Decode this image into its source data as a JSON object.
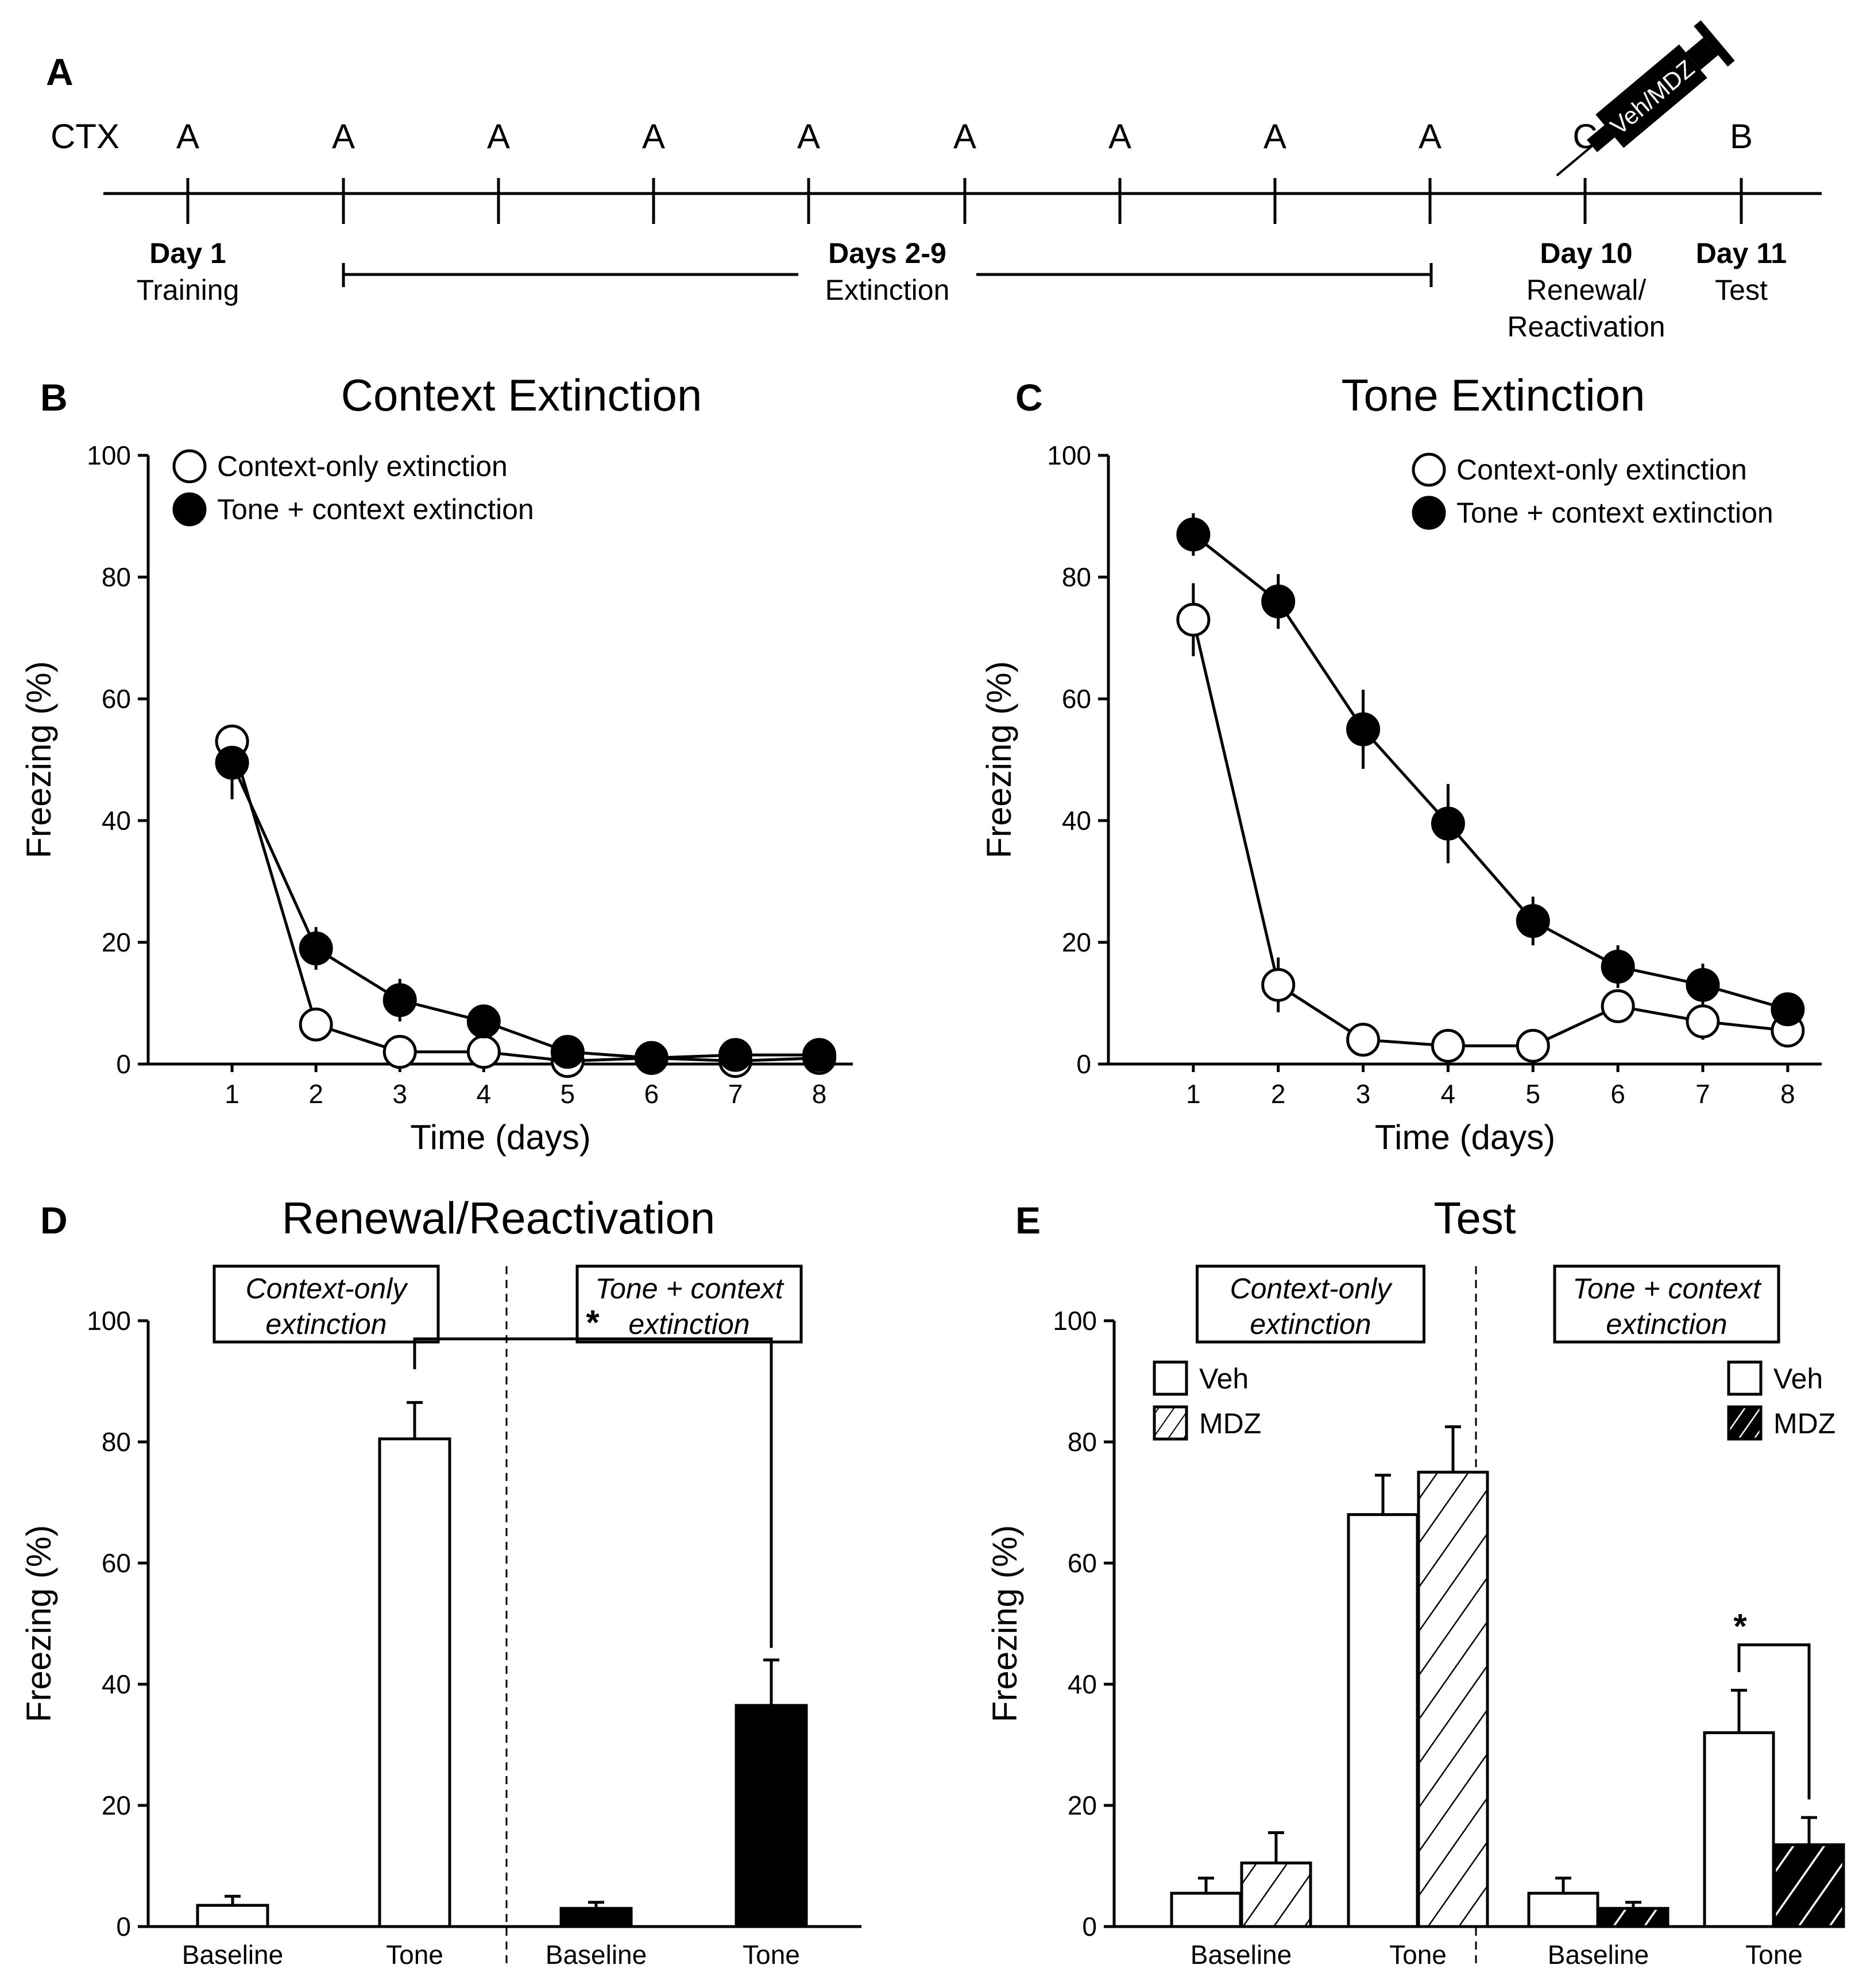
{
  "panel_a": {
    "label": "A",
    "ctx_label": "CTX",
    "contexts": [
      "A",
      "A",
      "A",
      "A",
      "A",
      "A",
      "A",
      "A",
      "A",
      "C",
      "B"
    ],
    "day1": {
      "bold": "Day 1",
      "sub": "Training"
    },
    "days29": {
      "bold": "Days 2-9",
      "sub": "Extinction"
    },
    "day10": {
      "bold": "Day 10",
      "sub1": "Renewal/",
      "sub2": "Reactivation"
    },
    "day11": {
      "bold": "Day 11",
      "sub": "Test"
    },
    "syringe_text": "Veh/MDZ"
  },
  "colors": {
    "fill": "#000000",
    "empty": "#ffffff"
  },
  "chart_data": [
    {
      "panel": "B",
      "type": "line",
      "title": "Context Extinction",
      "xlabel": "Time (days)",
      "ylabel": "Freezing (%)",
      "x": [
        1,
        2,
        3,
        4,
        5,
        6,
        7,
        8
      ],
      "xlim": [
        0,
        8.4
      ],
      "ylim": [
        0,
        100
      ],
      "yticks": [
        0,
        20,
        40,
        60,
        80,
        100
      ],
      "series": [
        {
          "name": "Context-only extinction",
          "marker": "open",
          "values": [
            53,
            6.5,
            2,
            2,
            0.5,
            1,
            0.5,
            1
          ],
          "errors": [
            0,
            0,
            0,
            0,
            0,
            0,
            0,
            0
          ]
        },
        {
          "name": "Tone + context extinction",
          "marker": "filled",
          "values": [
            49.5,
            19,
            10.5,
            7,
            2,
            1,
            1.5,
            1.5
          ],
          "errors": [
            6,
            3.5,
            3.5,
            0,
            0,
            0,
            0,
            0
          ]
        }
      ],
      "legend": "top-left"
    },
    {
      "panel": "C",
      "type": "line",
      "title": "Tone Extinction",
      "xlabel": "Time (days)",
      "ylabel": "Freezing (%)",
      "x": [
        1,
        2,
        3,
        4,
        5,
        6,
        7,
        8
      ],
      "xlim": [
        0,
        8.4
      ],
      "ylim": [
        0,
        100
      ],
      "yticks": [
        0,
        20,
        40,
        60,
        80,
        100
      ],
      "series": [
        {
          "name": "Context-only extinction",
          "marker": "open",
          "values": [
            73,
            13,
            4,
            3,
            3,
            9.5,
            7,
            5.5
          ],
          "errors": [
            6,
            4.5,
            0,
            0,
            0,
            0,
            3,
            0
          ]
        },
        {
          "name": "Tone + context extinction",
          "marker": "filled",
          "values": [
            87,
            76,
            55,
            39.5,
            23.5,
            16,
            13,
            9
          ],
          "errors": [
            3.5,
            4.5,
            6.5,
            6.5,
            4,
            3.5,
            3.5,
            2.5
          ]
        }
      ],
      "legend": "top-right"
    },
    {
      "panel": "D",
      "type": "bar",
      "title": "Renewal/Reactivation",
      "ylabel": "Freezing (%)",
      "ylim": [
        0,
        100
      ],
      "yticks": [
        0,
        20,
        40,
        60,
        80,
        100
      ],
      "groups": [
        {
          "box_line1": "Context-only",
          "box_line2": "extinction",
          "categories": [
            "Baseline",
            "Tone"
          ],
          "values": [
            3.5,
            80.5
          ],
          "errors": [
            1.5,
            6
          ],
          "fill": "open"
        },
        {
          "box_line1": "Tone + context",
          "box_line2": "extinction",
          "categories": [
            "Baseline",
            "Tone"
          ],
          "values": [
            3,
            36.5
          ],
          "errors": [
            1,
            7.5
          ],
          "fill": "filled"
        }
      ],
      "significance": "*"
    },
    {
      "panel": "E",
      "type": "bar",
      "title": "Test",
      "ylabel": "Freezing (%)",
      "ylim": [
        0,
        100
      ],
      "yticks": [
        0,
        20,
        40,
        60,
        80,
        100
      ],
      "groups": [
        {
          "box_line1": "Context-only",
          "box_line2": "extinction",
          "categories": [
            "Baseline",
            "Tone"
          ],
          "series": [
            {
              "name": "Veh",
              "fill": "open",
              "values": [
                5.5,
                68
              ],
              "errors": [
                2.5,
                6.5
              ]
            },
            {
              "name": "MDZ",
              "fill": "hatched",
              "values": [
                10.5,
                75
              ],
              "errors": [
                5,
                7.5
              ]
            }
          ]
        },
        {
          "box_line1": "Tone + context",
          "box_line2": "extinction",
          "categories": [
            "Baseline",
            "Tone"
          ],
          "series": [
            {
              "name": "Veh",
              "fill": "open",
              "values": [
                5.5,
                32
              ],
              "errors": [
                2.5,
                7
              ]
            },
            {
              "name": "MDZ",
              "fill": "filled-hatched",
              "values": [
                3,
                13.5
              ],
              "errors": [
                1,
                4.5
              ]
            }
          ]
        }
      ],
      "significance": "*"
    }
  ]
}
